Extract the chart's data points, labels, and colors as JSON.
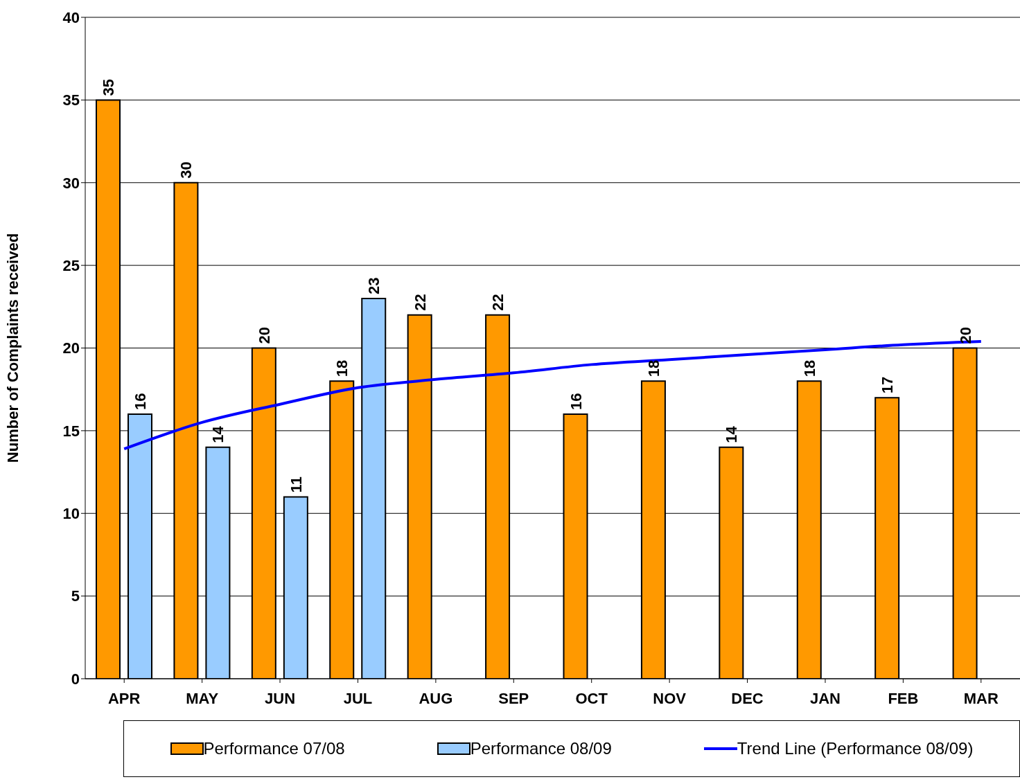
{
  "chart_data": {
    "type": "bar",
    "ylabel": "Number of Complaints received",
    "categories": [
      "APR",
      "MAY",
      "JUN",
      "JUL",
      "AUG",
      "SEP",
      "OCT",
      "NOV",
      "DEC",
      "JAN",
      "FEB",
      "MAR"
    ],
    "series": [
      {
        "name": "Performance 07/08",
        "color": "#ff9900",
        "values": [
          35,
          30,
          20,
          18,
          22,
          22,
          16,
          18,
          14,
          18,
          17,
          20
        ],
        "value_labels": [
          "35",
          "30",
          "20",
          "18",
          "22",
          "22",
          "16",
          "18",
          "14",
          "18",
          "17",
          "20"
        ]
      },
      {
        "name": "Performance 08/09",
        "color": "#99ccff",
        "values": [
          16,
          14,
          11,
          23,
          null,
          null,
          null,
          null,
          null,
          null,
          null,
          null
        ],
        "value_labels": [
          "16",
          "14",
          "11",
          "23",
          null,
          null,
          null,
          null,
          null,
          null,
          null,
          null
        ]
      },
      {
        "name": "Trend Line (Performance 08/09)",
        "type": "line",
        "color": "#0000ff",
        "values": [
          13.9,
          15.5,
          16.6,
          17.6,
          18.1,
          18.5,
          19.0,
          19.3,
          19.6,
          19.9,
          20.2,
          20.4
        ]
      }
    ],
    "ylim": [
      0,
      40
    ],
    "yticks": [
      0,
      5,
      10,
      15,
      20,
      25,
      30,
      35,
      40
    ],
    "grid": "y",
    "legend": "bottom",
    "marker": "none",
    "line_style": "solid"
  }
}
